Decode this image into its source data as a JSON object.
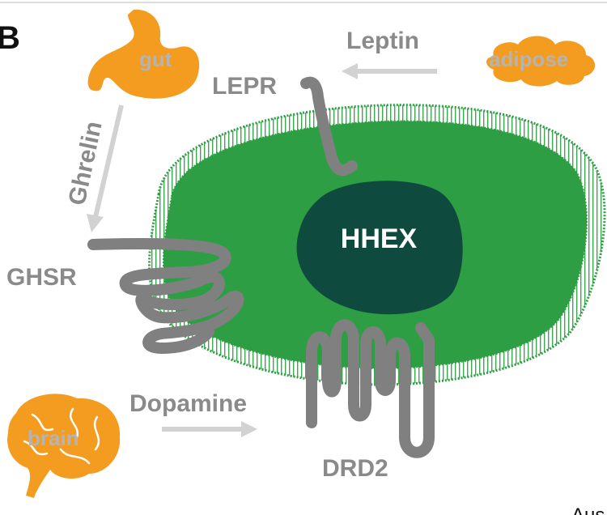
{
  "panel_label": "B",
  "nucleus": {
    "label": "HHEX"
  },
  "organs": {
    "gut": {
      "label": "gut",
      "color": "#f39c1f"
    },
    "adipose": {
      "label": "adipose",
      "color": "#f39c1f"
    },
    "brain": {
      "label": "brain",
      "color": "#f39c1f"
    }
  },
  "hormones": {
    "leptin": "Leptin",
    "ghrelin": "Ghrelin",
    "dopamine": "Dopamine"
  },
  "receptors": {
    "lepr": "LEPR",
    "ghsr": "GHSR",
    "drd2": "DRD2"
  },
  "corner_text": "Aus",
  "colors": {
    "cell_fill": "#2e9e45",
    "membrane": "#3aa84d",
    "nucleus_fill": "#0f4a3f",
    "receptor": "#808080",
    "arrow": "#d2d2d2"
  }
}
